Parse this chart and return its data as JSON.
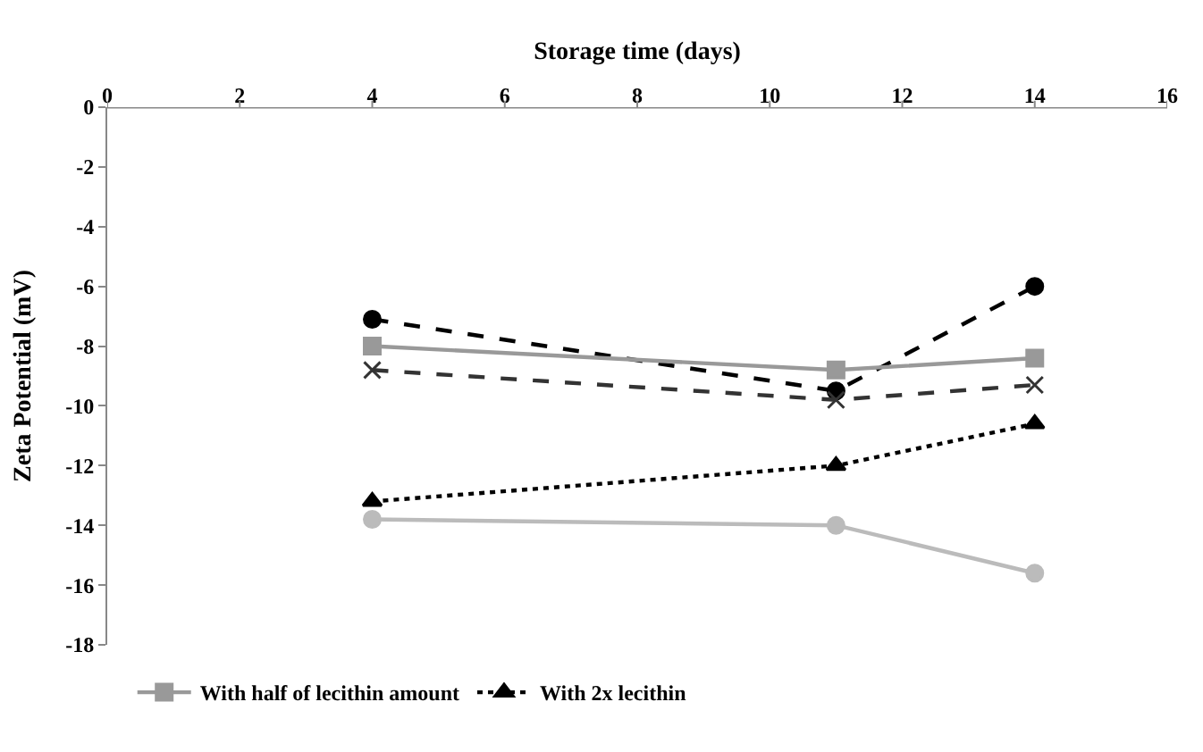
{
  "chart_data": {
    "type": "line",
    "xlabel": "Storage time (days)",
    "ylabel": "Zeta Potential (mV)",
    "x": [
      4,
      11,
      14
    ],
    "xlim": [
      0,
      16
    ],
    "xticks": [
      0,
      2,
      4,
      6,
      8,
      10,
      12,
      14,
      16
    ],
    "ylim": [
      -18,
      0
    ],
    "yticks": [
      0,
      -2,
      -4,
      -6,
      -8,
      -10,
      -12,
      -14,
      -16,
      -18
    ],
    "legend": "bottom",
    "series": [
      {
        "name": "With half of lecithin amount",
        "color": "#999999",
        "values": [
          -8.0,
          -8.8,
          -8.4
        ],
        "marker": "square",
        "line_style": "solid"
      },
      {
        "name": "With 2x lecithin",
        "color": "#000000",
        "values": [
          -13.2,
          -12.0,
          -10.6
        ],
        "marker": "triangle",
        "line_style": "dotted"
      },
      {
        "color": "#333333",
        "values": [
          -8.8,
          -9.8,
          -9.3
        ],
        "marker": "cross",
        "line_style": "dashed"
      },
      {
        "color": "#000000",
        "values": [
          -7.1,
          -9.5,
          -6.0
        ],
        "marker": "circle",
        "line_style": "dashed"
      },
      {
        "color": "#bbbbbb",
        "values": [
          -13.8,
          -14.0,
          -15.6
        ],
        "marker": "circle",
        "line_style": "solid"
      }
    ]
  }
}
